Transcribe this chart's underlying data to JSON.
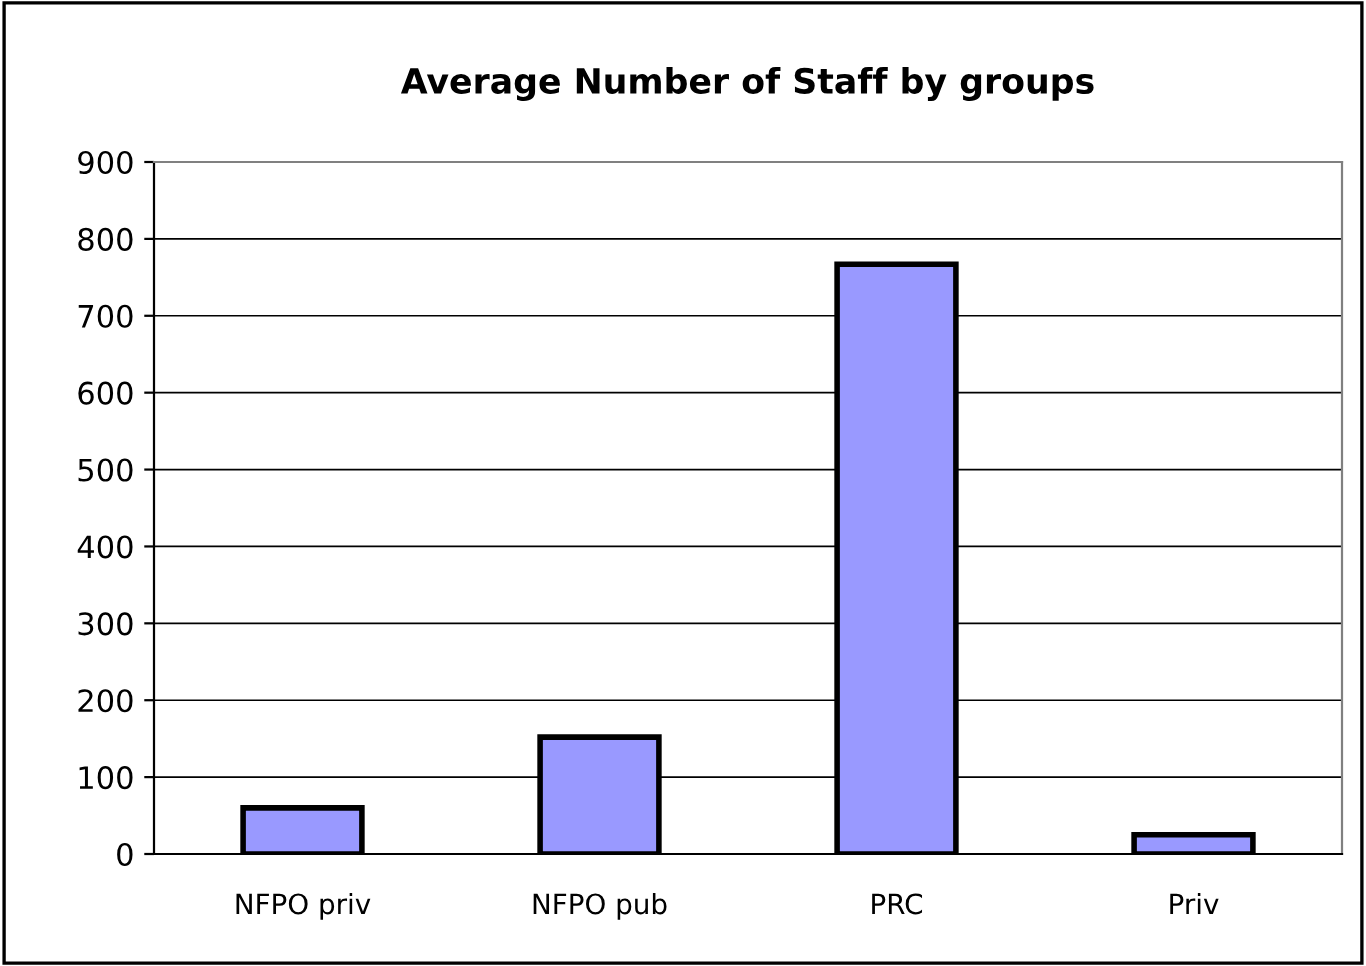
{
  "chart_data": {
    "type": "bar",
    "title": "Average Number of Staff by groups",
    "categories": [
      "NFPO priv",
      "NFPO pub",
      "PRC",
      "Priv"
    ],
    "values": [
      60,
      152,
      767,
      25
    ],
    "color": "#9999ff",
    "ylim": [
      0,
      900
    ],
    "yticks": [
      0,
      100,
      200,
      300,
      400,
      500,
      600,
      700,
      800,
      900
    ],
    "grid": "y",
    "legend": false
  }
}
